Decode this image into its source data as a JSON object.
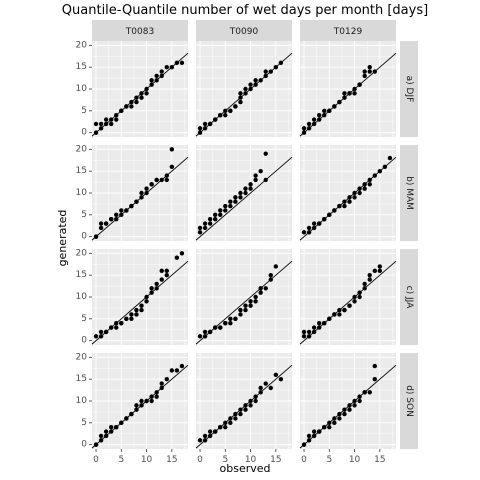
{
  "chart_data": {
    "type": "scatter",
    "title": "Quantile-Quantile number of wet days per month [days]",
    "xlabel": "observed",
    "ylabel": "generated",
    "xlim": [
      -0.8,
      18.2
    ],
    "ylim": [
      -1,
      21
    ],
    "x_ticks": [
      0,
      5,
      10,
      15
    ],
    "y_ticks": [
      0,
      5,
      10,
      15,
      20
    ],
    "column_facets": [
      "T0083",
      "T0090",
      "T0129"
    ],
    "row_facets": [
      "a) DJF",
      "b) MAM",
      "c) JJA",
      "d) SON"
    ],
    "reference_line": "y = x",
    "grid": true,
    "colors": {
      "panel_bg": "#EBEBEB",
      "strip_bg": "#D9D9D9",
      "grid": "#FFFFFF",
      "points": "#000000",
      "line": "#000000"
    },
    "panels": [
      {
        "column": "T0083",
        "row": "a) DJF",
        "x": [
          0,
          0,
          1,
          1,
          2,
          2,
          3,
          3,
          4,
          4,
          5,
          5,
          6,
          6,
          7,
          7,
          8,
          8,
          9,
          9,
          10,
          10,
          11,
          11,
          12,
          12,
          13,
          13,
          14,
          15,
          16,
          17
        ],
        "y": [
          0,
          2,
          1,
          2,
          2,
          3,
          2,
          3,
          3,
          4,
          5,
          5,
          6,
          6,
          6,
          7,
          7,
          8,
          8,
          9,
          9,
          10,
          11,
          12,
          12,
          13,
          13,
          14,
          15,
          15,
          16,
          16
        ]
      },
      {
        "column": "T0090",
        "row": "a) DJF",
        "x": [
          0,
          0,
          1,
          1,
          2,
          2,
          3,
          3,
          4,
          4,
          5,
          5,
          6,
          6,
          7,
          7,
          8,
          8,
          8,
          9,
          9,
          10,
          10,
          11,
          11,
          12,
          13,
          13,
          14,
          15,
          16
        ],
        "y": [
          0,
          1,
          1,
          2,
          2,
          2,
          3,
          3,
          4,
          4,
          4,
          5,
          5,
          5,
          6,
          6,
          7,
          8,
          9,
          9,
          10,
          10,
          11,
          11,
          12,
          12,
          13,
          14,
          14,
          15,
          16
        ]
      },
      {
        "column": "T0129",
        "row": "a) DJF",
        "x": [
          0,
          0,
          1,
          1,
          2,
          2,
          3,
          3,
          4,
          4,
          5,
          5,
          6,
          6,
          7,
          7,
          8,
          8,
          9,
          9,
          10,
          10,
          11,
          11,
          12,
          12,
          13,
          13,
          14
        ],
        "y": [
          0,
          1,
          1,
          2,
          2,
          3,
          3,
          4,
          4,
          5,
          5,
          5,
          6,
          6,
          7,
          7,
          8,
          9,
          9,
          9,
          9,
          10,
          11,
          11,
          13,
          14,
          14,
          15,
          14
        ]
      },
      {
        "column": "T0083",
        "row": "b) MAM",
        "x": [
          0,
          0,
          1,
          1,
          2,
          2,
          3,
          3,
          4,
          4,
          5,
          5,
          6,
          6,
          7,
          7,
          8,
          8,
          9,
          9,
          10,
          10,
          11,
          11,
          12,
          12,
          13,
          14,
          14,
          15,
          15
        ],
        "y": [
          0,
          0,
          2,
          3,
          3,
          3,
          4,
          4,
          4,
          5,
          5,
          6,
          6,
          6,
          7,
          7,
          8,
          8,
          9,
          10,
          10,
          11,
          12,
          12,
          13,
          13,
          13,
          13,
          14,
          16,
          20
        ]
      },
      {
        "column": "T0090",
        "row": "b) MAM",
        "x": [
          0,
          0,
          1,
          1,
          2,
          2,
          3,
          3,
          4,
          4,
          5,
          5,
          6,
          6,
          7,
          7,
          8,
          8,
          9,
          9,
          10,
          10,
          11,
          11,
          12,
          13,
          13
        ],
        "y": [
          1,
          2,
          2,
          3,
          3,
          4,
          4,
          5,
          5,
          6,
          6,
          7,
          7,
          8,
          8,
          9,
          9,
          10,
          10,
          11,
          11,
          12,
          13,
          14,
          15,
          13,
          19
        ]
      },
      {
        "column": "T0129",
        "row": "b) MAM",
        "x": [
          0,
          1,
          1,
          2,
          2,
          3,
          3,
          4,
          4,
          5,
          5,
          6,
          6,
          7,
          7,
          8,
          8,
          9,
          9,
          10,
          10,
          11,
          11,
          12,
          12,
          13,
          13,
          14,
          15,
          16,
          17
        ],
        "y": [
          1,
          1,
          2,
          2,
          3,
          3,
          3,
          4,
          4,
          5,
          5,
          6,
          6,
          7,
          7,
          7,
          8,
          8,
          9,
          9,
          10,
          10,
          11,
          11,
          12,
          12,
          13,
          14,
          15,
          16,
          18
        ]
      },
      {
        "column": "T0083",
        "row": "c) JJA",
        "x": [
          0,
          1,
          1,
          2,
          2,
          3,
          3,
          4,
          4,
          5,
          5,
          6,
          6,
          7,
          7,
          8,
          8,
          9,
          9,
          10,
          10,
          11,
          11,
          12,
          12,
          13,
          13,
          14,
          14,
          16,
          17
        ],
        "y": [
          1,
          1,
          2,
          2,
          2,
          3,
          3,
          3,
          4,
          4,
          4,
          5,
          5,
          5,
          6,
          6,
          7,
          7,
          8,
          9,
          10,
          11,
          12,
          12,
          13,
          14,
          16,
          16,
          15,
          19,
          20
        ]
      },
      {
        "column": "T0090",
        "row": "c) JJA",
        "x": [
          0,
          1,
          1,
          2,
          2,
          3,
          3,
          4,
          4,
          5,
          5,
          6,
          6,
          7,
          7,
          8,
          8,
          9,
          9,
          10,
          10,
          11,
          11,
          12,
          12,
          13,
          14,
          14,
          15
        ],
        "y": [
          1,
          1,
          2,
          2,
          2,
          3,
          3,
          3,
          3,
          4,
          4,
          4,
          5,
          5,
          5,
          6,
          7,
          7,
          8,
          8,
          9,
          9,
          10,
          11,
          12,
          12,
          15,
          14,
          17
        ]
      },
      {
        "column": "T0129",
        "row": "c) JJA",
        "x": [
          0,
          0,
          1,
          1,
          2,
          2,
          3,
          3,
          4,
          4,
          5,
          5,
          6,
          6,
          7,
          7,
          8,
          8,
          9,
          9,
          10,
          10,
          11,
          11,
          12,
          12,
          13,
          13,
          14,
          15,
          15
        ],
        "y": [
          1,
          2,
          1,
          2,
          2,
          3,
          3,
          4,
          4,
          4,
          5,
          5,
          6,
          6,
          6,
          7,
          7,
          7,
          8,
          8,
          9,
          10,
          10,
          11,
          12,
          13,
          14,
          15,
          16,
          16,
          17
        ]
      },
      {
        "column": "T0083",
        "row": "d) SON",
        "x": [
          0,
          0,
          1,
          1,
          2,
          2,
          3,
          3,
          4,
          4,
          5,
          5,
          6,
          6,
          7,
          7,
          8,
          8,
          9,
          9,
          10,
          10,
          11,
          11,
          12,
          12,
          13,
          13,
          14,
          15,
          16,
          17
        ],
        "y": [
          0,
          0,
          1,
          2,
          2,
          3,
          3,
          4,
          4,
          4,
          5,
          5,
          6,
          6,
          7,
          7,
          8,
          9,
          9,
          10,
          10,
          10,
          10,
          11,
          11,
          12,
          13,
          14,
          15,
          17,
          17,
          18
        ]
      },
      {
        "column": "T0090",
        "row": "d) SON",
        "x": [
          0,
          1,
          1,
          2,
          2,
          3,
          3,
          4,
          4,
          5,
          5,
          6,
          6,
          7,
          7,
          8,
          8,
          9,
          9,
          10,
          10,
          11,
          11,
          12,
          12,
          13,
          14,
          15,
          16
        ],
        "y": [
          1,
          1,
          2,
          2,
          3,
          3,
          3,
          4,
          4,
          4,
          5,
          5,
          6,
          6,
          7,
          7,
          8,
          8,
          9,
          9,
          10,
          10,
          11,
          12,
          13,
          14,
          13,
          16,
          15
        ]
      },
      {
        "column": "T0129",
        "row": "d) SON",
        "x": [
          0,
          1,
          1,
          2,
          2,
          3,
          3,
          4,
          4,
          5,
          5,
          6,
          6,
          7,
          7,
          8,
          8,
          9,
          9,
          10,
          10,
          11,
          11,
          12,
          12,
          13,
          14,
          14
        ],
        "y": [
          0,
          1,
          2,
          2,
          3,
          3,
          3,
          4,
          4,
          4,
          5,
          5,
          6,
          6,
          7,
          7,
          8,
          8,
          9,
          9,
          10,
          10,
          11,
          12,
          12,
          12,
          15,
          18
        ]
      }
    ]
  }
}
